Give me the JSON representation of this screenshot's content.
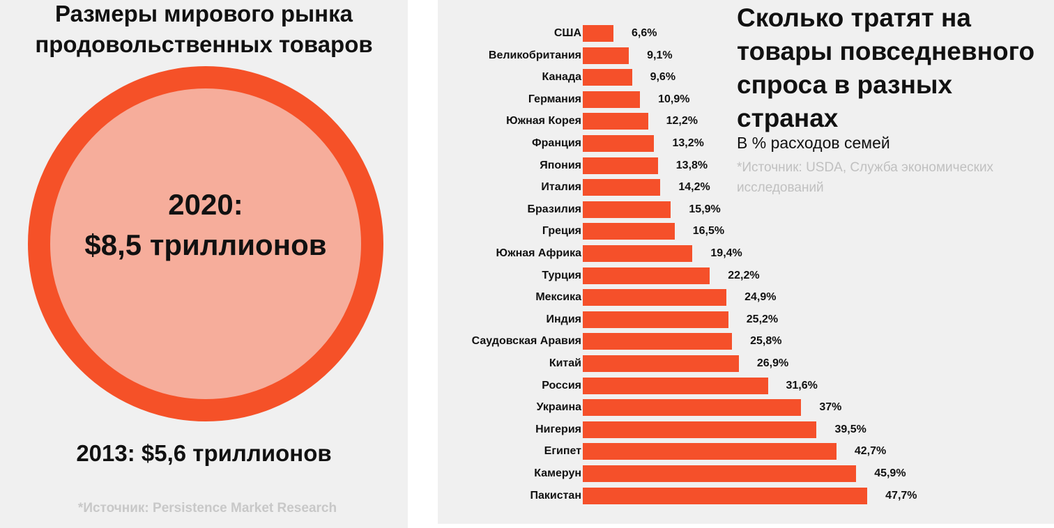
{
  "left": {
    "title_line1": "Размеры мирового рынка",
    "title_line2": "продовольственных товаров",
    "value_line1": "2020:",
    "value_line2": "$8,5 триллионов",
    "previous": "2013: $5,6 триллионов",
    "source": "*Источник: Persistence Market Research"
  },
  "right": {
    "title_line1": "Сколько тратят на",
    "title_line2": "товары повседневного",
    "title_line3": "спроса в разных",
    "title_line4": "странах",
    "subtitle": "В % расходов семей",
    "source_line1": "*Источник: USDA, Служба экономических",
    "source_line2": "исследований"
  },
  "colors": {
    "accent": "#f5502a",
    "circle_fill": "#f6ad9b",
    "panel_bg": "#f0f0f0"
  },
  "chart_data": {
    "type": "bar",
    "orientation": "horizontal",
    "title": "Сколько тратят на товары повседневного спроса в разных странах",
    "ylabel": "В % расходов семей",
    "categories": [
      "США",
      "Великобритания",
      "Канада",
      "Германия",
      "Южная Корея",
      "Франция",
      "Япония",
      "Италия",
      "Бразилия",
      "Греция",
      "Южная Африка",
      "Турция",
      "Мексика",
      "Индия",
      "Саудовская Аравия",
      "Китай",
      "Россия",
      "Украина",
      "Нигерия",
      "Египет",
      "Камерун",
      "Пакистан"
    ],
    "values": [
      6.6,
      9.1,
      9.6,
      10.9,
      12.2,
      13.2,
      13.8,
      14.2,
      15.9,
      16.5,
      19.4,
      22.2,
      24.9,
      25.2,
      25.8,
      26.9,
      31.6,
      37,
      39.5,
      42.7,
      45.9,
      47.7
    ],
    "labels": [
      "6,6%",
      "9,1%",
      "9,6%",
      "10,9%",
      "12,2%",
      "13,2%",
      "13,8%",
      "14,2%",
      "15,9%",
      "16,5%",
      "19,4%",
      "22,2%",
      "24,9%",
      "25,2%",
      "25,8%",
      "26,9%",
      "31,6%",
      "37%",
      "39,5%",
      "42,7%",
      "45,9%",
      "47,7%"
    ]
  }
}
